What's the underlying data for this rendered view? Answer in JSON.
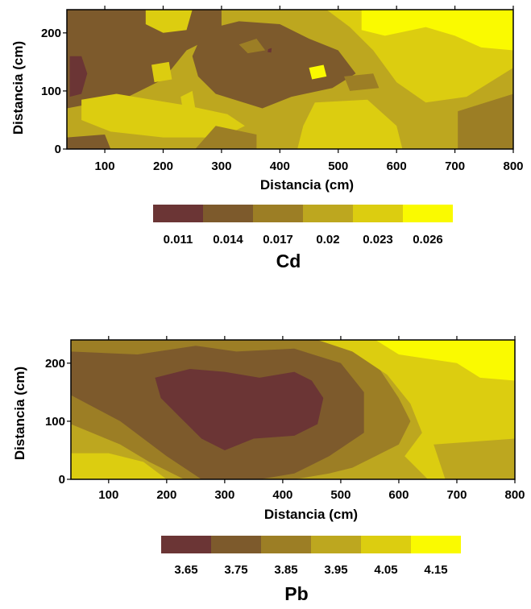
{
  "chart_data": [
    {
      "type": "heatmap",
      "title": "Cd",
      "xlabel": "Distancia (cm)",
      "ylabel": "Distancia (cm)",
      "xlim": [
        35,
        800
      ],
      "ylim": [
        0,
        240
      ],
      "x_ticks": [
        100,
        200,
        300,
        400,
        500,
        600,
        700,
        800
      ],
      "y_ticks": [
        0,
        100,
        200
      ],
      "legend_levels": [
        "0.011",
        "0.014",
        "0.017",
        "0.02",
        "0.023",
        "0.026"
      ],
      "colors": [
        "#6b3535",
        "#7d5a2c",
        "#9c7e25",
        "#bda71f",
        "#dccd10",
        "#fafa00"
      ],
      "background_level": "0.02",
      "regions": [
        {
          "level": "0.014",
          "points": [
            [
              35,
              240
            ],
            [
              300,
              240
            ],
            [
              300,
              200
            ],
            [
              240,
              170
            ],
            [
              200,
              120
            ],
            [
              140,
              90
            ],
            [
              35,
              70
            ]
          ]
        },
        {
          "level": "0.014",
          "points": [
            [
              270,
              205
            ],
            [
              330,
              220
            ],
            [
              400,
              215
            ],
            [
              450,
              190
            ],
            [
              500,
              170
            ],
            [
              530,
              130
            ],
            [
              490,
              105
            ],
            [
              420,
              90
            ],
            [
              370,
              70
            ],
            [
              290,
              95
            ],
            [
              260,
              125
            ],
            [
              250,
              160
            ]
          ]
        },
        {
          "level": "0.014",
          "points": [
            [
              35,
              20
            ],
            [
              100,
              25
            ],
            [
              110,
              0
            ],
            [
              35,
              0
            ]
          ]
        },
        {
          "level": "0.011",
          "points": [
            [
              40,
              160
            ],
            [
              60,
              160
            ],
            [
              70,
              130
            ],
            [
              60,
              95
            ],
            [
              40,
              90
            ]
          ]
        },
        {
          "level": "0.011",
          "points": [
            [
              380,
              172
            ],
            [
              386,
              174
            ],
            [
              385,
              166
            ],
            [
              379,
              167
            ]
          ]
        },
        {
          "level": "0.023",
          "points": [
            [
              60,
              85
            ],
            [
              120,
              95
            ],
            [
              180,
              85
            ],
            [
              240,
              75
            ],
            [
              310,
              60
            ],
            [
              340,
              40
            ],
            [
              300,
              20
            ],
            [
              200,
              20
            ],
            [
              110,
              30
            ],
            [
              60,
              50
            ]
          ]
        },
        {
          "level": "0.023",
          "points": [
            [
              170,
              240
            ],
            [
              250,
              240
            ],
            [
              240,
              205
            ],
            [
              200,
              200
            ],
            [
              170,
              215
            ]
          ]
        },
        {
          "level": "0.023",
          "points": [
            [
              480,
              240
            ],
            [
              800,
              240
            ],
            [
              800,
              140
            ],
            [
              720,
              90
            ],
            [
              650,
              80
            ],
            [
              600,
              115
            ],
            [
              560,
              170
            ],
            [
              520,
              210
            ]
          ]
        },
        {
          "level": "0.023",
          "points": [
            [
              460,
              80
            ],
            [
              550,
              85
            ],
            [
              600,
              40
            ],
            [
              610,
              0
            ],
            [
              430,
              0
            ],
            [
              440,
              40
            ]
          ]
        },
        {
          "level": "0.023",
          "points": [
            [
              180,
              145
            ],
            [
              210,
              150
            ],
            [
              215,
              120
            ],
            [
              185,
              115
            ]
          ]
        },
        {
          "level": "0.023",
          "points": [
            [
              230,
              90
            ],
            [
              250,
              100
            ],
            [
              255,
              70
            ],
            [
              235,
              60
            ]
          ]
        },
        {
          "level": "0.017",
          "points": [
            [
              330,
              180
            ],
            [
              360,
              190
            ],
            [
              375,
              170
            ],
            [
              345,
              165
            ]
          ]
        },
        {
          "level": "0.017",
          "points": [
            [
              510,
              125
            ],
            [
              560,
              130
            ],
            [
              570,
              105
            ],
            [
              520,
              100
            ]
          ]
        },
        {
          "level": "0.017",
          "points": [
            [
              705,
              65
            ],
            [
              800,
              95
            ],
            [
              800,
              0
            ],
            [
              705,
              0
            ]
          ]
        },
        {
          "level": "0.017",
          "points": [
            [
              255,
              0
            ],
            [
              290,
              40
            ],
            [
              360,
              25
            ],
            [
              360,
              0
            ]
          ]
        },
        {
          "level": "0.026",
          "points": [
            [
              540,
              240
            ],
            [
              800,
              240
            ],
            [
              800,
              170
            ],
            [
              745,
              175
            ],
            [
              700,
              195
            ],
            [
              650,
              210
            ],
            [
              580,
              195
            ],
            [
              540,
              205
            ]
          ]
        },
        {
          "level": "0.026",
          "points": [
            [
              450,
              140
            ],
            [
              475,
              145
            ],
            [
              480,
              125
            ],
            [
              455,
              120
            ]
          ]
        }
      ]
    },
    {
      "type": "heatmap",
      "title": "Pb",
      "xlabel": "Distancia (cm)",
      "ylabel": "Distancia (cm)",
      "xlim": [
        35,
        800
      ],
      "ylim": [
        0,
        240
      ],
      "x_ticks": [
        100,
        200,
        300,
        400,
        500,
        600,
        700,
        800
      ],
      "y_ticks": [
        0,
        100,
        200
      ],
      "legend_levels": [
        "3.65",
        "3.75",
        "3.85",
        "3.95",
        "4.05",
        "4.15"
      ],
      "colors": [
        "#6b3535",
        "#7d5a2c",
        "#9c7e25",
        "#bda71f",
        "#dccd10",
        "#fafa00"
      ],
      "background_level": "3.95",
      "regions": [
        {
          "level": "3.85",
          "points": [
            [
              35,
              240
            ],
            [
              520,
              240
            ],
            [
              560,
              200
            ],
            [
              600,
              140
            ],
            [
              620,
              100
            ],
            [
              600,
              60
            ],
            [
              560,
              40
            ],
            [
              520,
              20
            ],
            [
              480,
              10
            ],
            [
              420,
              0
            ],
            [
              230,
              0
            ],
            [
              170,
              30
            ],
            [
              120,
              60
            ],
            [
              35,
              95
            ]
          ]
        },
        {
          "level": "3.75",
          "points": [
            [
              35,
              220
            ],
            [
              150,
              215
            ],
            [
              250,
              230
            ],
            [
              320,
              220
            ],
            [
              420,
              225
            ],
            [
              500,
              200
            ],
            [
              540,
              150
            ],
            [
              540,
              80
            ],
            [
              480,
              40
            ],
            [
              420,
              10
            ],
            [
              360,
              0
            ],
            [
              260,
              0
            ],
            [
              200,
              40
            ],
            [
              120,
              100
            ],
            [
              35,
              145
            ]
          ]
        },
        {
          "level": "3.65",
          "points": [
            [
              180,
              175
            ],
            [
              240,
              190
            ],
            [
              300,
              185
            ],
            [
              360,
              175
            ],
            [
              420,
              185
            ],
            [
              450,
              170
            ],
            [
              470,
              140
            ],
            [
              460,
              95
            ],
            [
              420,
              75
            ],
            [
              350,
              70
            ],
            [
              300,
              50
            ],
            [
              260,
              70
            ],
            [
              220,
              110
            ],
            [
              190,
              140
            ]
          ]
        },
        {
          "level": "4.05",
          "points": [
            [
              35,
              45
            ],
            [
              100,
              45
            ],
            [
              160,
              30
            ],
            [
              200,
              0
            ],
            [
              35,
              0
            ]
          ]
        },
        {
          "level": "4.05",
          "points": [
            [
              460,
              240
            ],
            [
              800,
              240
            ],
            [
              800,
              0
            ],
            [
              650,
              0
            ],
            [
              610,
              40
            ],
            [
              640,
              80
            ],
            [
              620,
              130
            ],
            [
              580,
              180
            ],
            [
              520,
              220
            ]
          ]
        },
        {
          "level": "3.95",
          "points": [
            [
              660,
              60
            ],
            [
              800,
              70
            ],
            [
              800,
              0
            ],
            [
              680,
              0
            ]
          ]
        },
        {
          "level": "4.15",
          "points": [
            [
              560,
              240
            ],
            [
              800,
              240
            ],
            [
              800,
              170
            ],
            [
              740,
              175
            ],
            [
              700,
              200
            ],
            [
              600,
              215
            ]
          ]
        }
      ]
    }
  ]
}
